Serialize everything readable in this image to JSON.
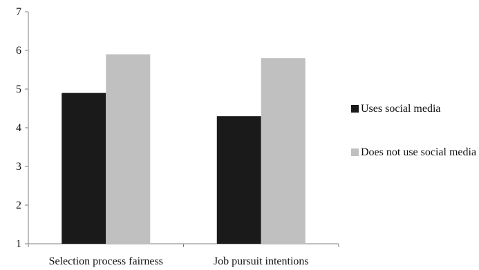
{
  "chart_data": {
    "type": "bar",
    "categories": [
      "Selection process fairness",
      "Job pursuit intentions"
    ],
    "series": [
      {
        "name": "Uses social media",
        "values": [
          4.9,
          4.3
        ],
        "color": "#1a1a1a"
      },
      {
        "name": "Does not use social media",
        "values": [
          5.9,
          5.8
        ],
        "color": "#c0c0c0"
      }
    ],
    "y_ticks": [
      "1",
      "2",
      "3",
      "4",
      "5",
      "6",
      "7"
    ],
    "ylim": [
      1,
      7
    ],
    "grid": false,
    "legend_position": "right"
  }
}
